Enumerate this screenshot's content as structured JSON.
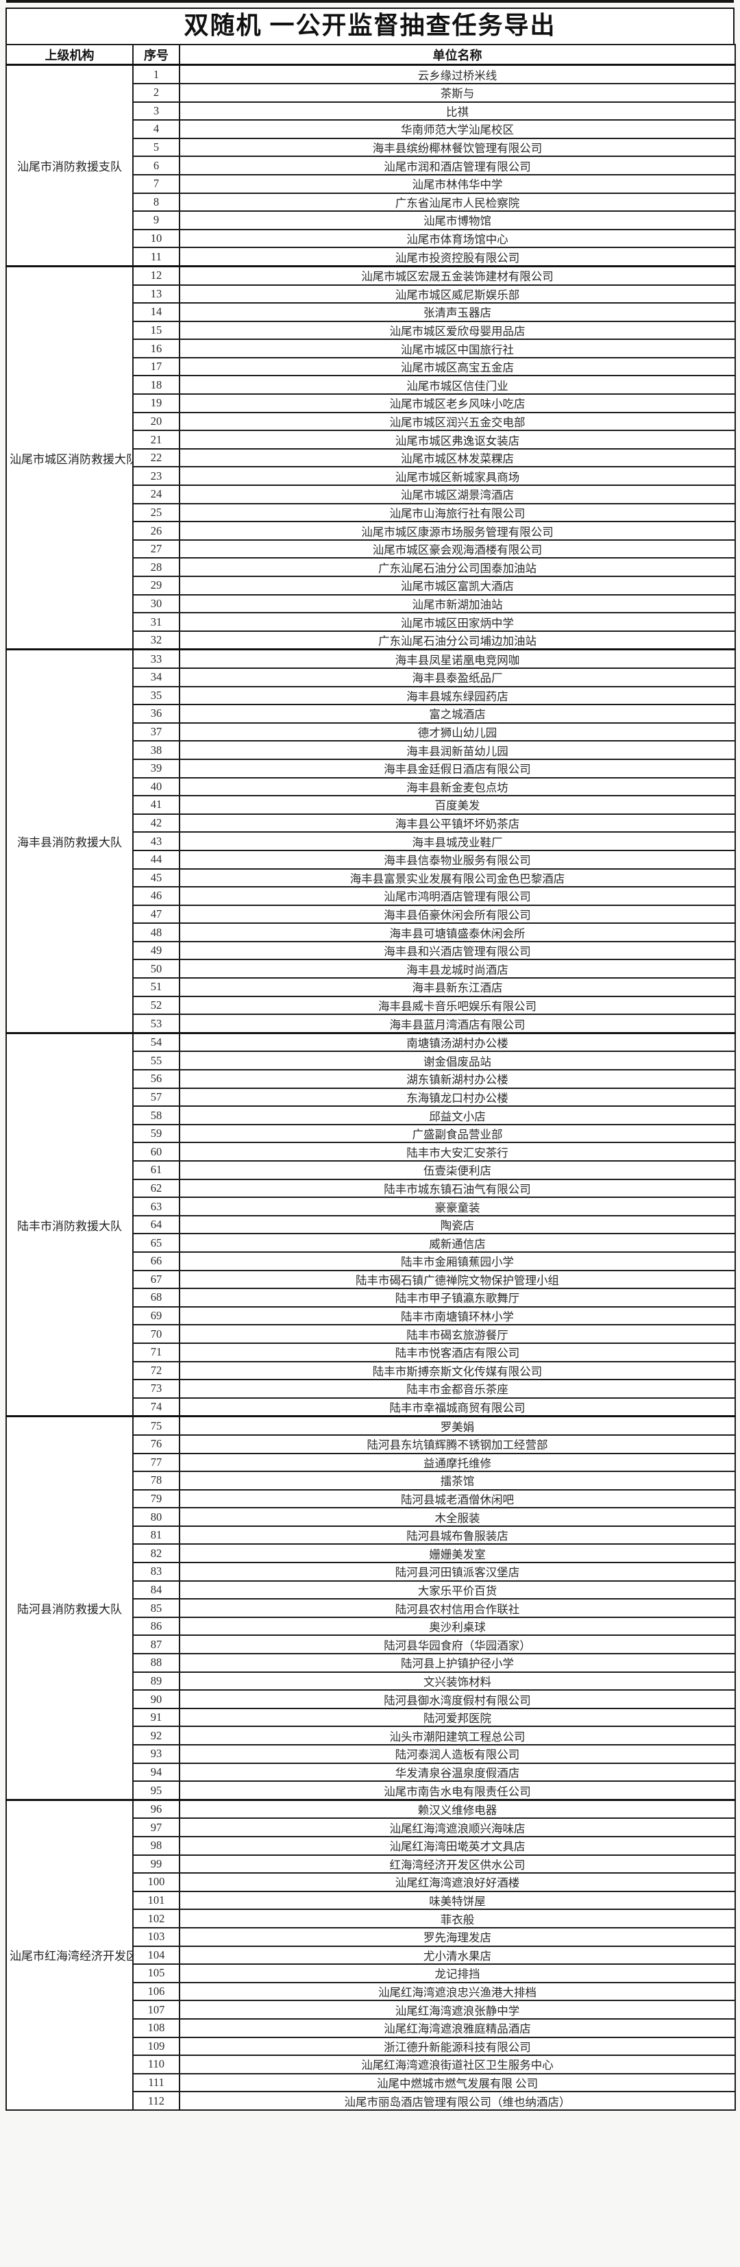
{
  "title": "双随机 一公开监督抽查任务导出",
  "table": {
    "headers": [
      "上级机构",
      "序号",
      "单位名称"
    ],
    "groups": [
      {
        "org": "汕尾市消防救援支队",
        "rows": [
          {
            "no": "1",
            "name": "云乡缘过桥米线"
          },
          {
            "no": "2",
            "name": "茶斯与"
          },
          {
            "no": "3",
            "name": "比祺"
          },
          {
            "no": "4",
            "name": "华南师范大学汕尾校区"
          },
          {
            "no": "5",
            "name": "海丰县缤纷椰林餐饮管理有限公司"
          },
          {
            "no": "6",
            "name": "汕尾市润和酒店管理有限公司"
          },
          {
            "no": "7",
            "name": "汕尾市林伟华中学"
          },
          {
            "no": "8",
            "name": "广东省汕尾市人民检察院"
          },
          {
            "no": "9",
            "name": "汕尾市博物馆"
          },
          {
            "no": "10",
            "name": "汕尾市体育场馆中心"
          },
          {
            "no": "11",
            "name": "汕尾市投资控股有限公司"
          }
        ]
      },
      {
        "org": "汕尾市城区消防救援大队",
        "rows": [
          {
            "no": "12",
            "name": "汕尾市城区宏晟五金装饰建材有限公司"
          },
          {
            "no": "13",
            "name": "汕尾市城区威尼斯娱乐部"
          },
          {
            "no": "14",
            "name": "张清声玉器店"
          },
          {
            "no": "15",
            "name": "汕尾市城区爱欣母婴用品店"
          },
          {
            "no": "16",
            "name": "汕尾市城区中国旅行社"
          },
          {
            "no": "17",
            "name": "汕尾市城区高宝五金店"
          },
          {
            "no": "18",
            "name": "汕尾市城区信佳门业"
          },
          {
            "no": "19",
            "name": "汕尾市城区老乡风味小吃店"
          },
          {
            "no": "20",
            "name": "汕尾市城区润兴五金交电部"
          },
          {
            "no": "21",
            "name": "汕尾市城区弗逸讴女装店"
          },
          {
            "no": "22",
            "name": "汕尾市城区林发菜粿店"
          },
          {
            "no": "23",
            "name": "汕尾市城区新城家具商场"
          },
          {
            "no": "24",
            "name": "汕尾市城区湖景湾酒店"
          },
          {
            "no": "25",
            "name": "汕尾市山海旅行社有限公司"
          },
          {
            "no": "26",
            "name": "汕尾市城区康源市场服务管理有限公司"
          },
          {
            "no": "27",
            "name": "汕尾市城区豪会观海酒楼有限公司"
          },
          {
            "no": "28",
            "name": "广东汕尾石油分公司国泰加油站"
          },
          {
            "no": "29",
            "name": "汕尾市城区富凯大酒店"
          },
          {
            "no": "30",
            "name": "汕尾市新湖加油站"
          },
          {
            "no": "31",
            "name": "汕尾市城区田家炳中学"
          },
          {
            "no": "32",
            "name": "广东汕尾石油分公司埔边加油站"
          }
        ]
      },
      {
        "org": "海丰县消防救援大队",
        "rows": [
          {
            "no": "33",
            "name": "海丰县凤星诺凰电竞网咖"
          },
          {
            "no": "34",
            "name": "海丰县泰盈纸品厂"
          },
          {
            "no": "35",
            "name": "海丰县城东绿园药店"
          },
          {
            "no": "36",
            "name": "富之城酒店"
          },
          {
            "no": "37",
            "name": "德才狮山幼儿园"
          },
          {
            "no": "38",
            "name": "海丰县润新苗幼儿园"
          },
          {
            "no": "39",
            "name": "海丰县金廷假日酒店有限公司"
          },
          {
            "no": "40",
            "name": "海丰县新金麦包点坊"
          },
          {
            "no": "41",
            "name": "百度美发"
          },
          {
            "no": "42",
            "name": "海丰县公平镇坏坏奶茶店"
          },
          {
            "no": "43",
            "name": "海丰县城茂业鞋厂"
          },
          {
            "no": "44",
            "name": "海丰县信泰物业服务有限公司"
          },
          {
            "no": "45",
            "name": "海丰县富景实业发展有限公司金色巴黎酒店"
          },
          {
            "no": "46",
            "name": "汕尾市鸿明酒店管理有限公司"
          },
          {
            "no": "47",
            "name": "海丰县佰豪休闲会所有限公司"
          },
          {
            "no": "48",
            "name": "海丰县可塘镇盛泰休闲会所"
          },
          {
            "no": "49",
            "name": "海丰县和兴酒店管理有限公司"
          },
          {
            "no": "50",
            "name": "海丰县龙城时尚酒店"
          },
          {
            "no": "51",
            "name": "海丰县新东江酒店"
          },
          {
            "no": "52",
            "name": "海丰县威卡音乐吧娱乐有限公司"
          },
          {
            "no": "53",
            "name": "海丰县蓝月湾酒店有限公司"
          }
        ]
      },
      {
        "org": "陆丰市消防救援大队",
        "rows": [
          {
            "no": "54",
            "name": "南塘镇汤湖村办公楼"
          },
          {
            "no": "55",
            "name": "谢金倡废品站"
          },
          {
            "no": "56",
            "name": "湖东镇新湖村办公楼"
          },
          {
            "no": "57",
            "name": "东海镇龙口村办公楼"
          },
          {
            "no": "58",
            "name": "邱益文小店"
          },
          {
            "no": "59",
            "name": "广盛副食品营业部"
          },
          {
            "no": "60",
            "name": "陆丰市大安汇安茶行"
          },
          {
            "no": "61",
            "name": "伍壹柒便利店"
          },
          {
            "no": "62",
            "name": "陆丰市城东镇石油气有限公司"
          },
          {
            "no": "63",
            "name": "豪豪童装"
          },
          {
            "no": "64",
            "name": "陶瓷店"
          },
          {
            "no": "65",
            "name": "威新通信店"
          },
          {
            "no": "66",
            "name": "陆丰市金厢镇蕉园小学"
          },
          {
            "no": "67",
            "name": "陆丰市碣石镇广德禅院文物保护管理小组"
          },
          {
            "no": "68",
            "name": "陆丰市甲子镇瀛东歌舞厅"
          },
          {
            "no": "69",
            "name": "陆丰市南塘镇环林小学"
          },
          {
            "no": "70",
            "name": "陆丰市碣玄旅游餐厅"
          },
          {
            "no": "71",
            "name": "陆丰市悦客酒店有限公司"
          },
          {
            "no": "72",
            "name": "陆丰市斯搏奈斯文化传媒有限公司"
          },
          {
            "no": "73",
            "name": "陆丰市金都音乐茶座"
          },
          {
            "no": "74",
            "name": "陆丰市幸福城商贸有限公司"
          }
        ]
      },
      {
        "org": "陆河县消防救援大队",
        "rows": [
          {
            "no": "75",
            "name": "罗美娟"
          },
          {
            "no": "76",
            "name": "陆河县东坑镇辉腾不锈钢加工经营部"
          },
          {
            "no": "77",
            "name": "益通摩托维修"
          },
          {
            "no": "78",
            "name": "擂茶馆"
          },
          {
            "no": "79",
            "name": "陆河县城老酒僧休闲吧"
          },
          {
            "no": "80",
            "name": "木全服装"
          },
          {
            "no": "81",
            "name": "陆河县城布鲁服装店"
          },
          {
            "no": "82",
            "name": "姗姗美发室"
          },
          {
            "no": "83",
            "name": "陆河县河田镇派客汉堡店"
          },
          {
            "no": "84",
            "name": "大家乐平价百货"
          },
          {
            "no": "85",
            "name": "陆河县农村信用合作联社"
          },
          {
            "no": "86",
            "name": "奥沙利桌球"
          },
          {
            "no": "87",
            "name": "陆河县华园食府（华园酒家）"
          },
          {
            "no": "88",
            "name": "陆河县上护镇护径小学"
          },
          {
            "no": "89",
            "name": "文兴装饰材料"
          },
          {
            "no": "90",
            "name": "陆河县御水湾度假村有限公司"
          },
          {
            "no": "91",
            "name": "陆河爱邦医院"
          },
          {
            "no": "92",
            "name": "汕头市潮阳建筑工程总公司"
          },
          {
            "no": "93",
            "name": "陆河泰润人造板有限公司"
          },
          {
            "no": "94",
            "name": "华发清泉谷温泉度假酒店"
          },
          {
            "no": "95",
            "name": "汕尾市南告水电有限责任公司"
          }
        ]
      },
      {
        "org": "汕尾市红海湾经济开发区消防救援大队",
        "rows": [
          {
            "no": "96",
            "name": "赖汉义维修电器"
          },
          {
            "no": "97",
            "name": "汕尾红海湾遮浪顺兴海味店"
          },
          {
            "no": "98",
            "name": "汕尾红海湾田墘英才文具店"
          },
          {
            "no": "99",
            "name": "红海湾经济开发区供水公司"
          },
          {
            "no": "100",
            "name": "汕尾红海湾遮浪好好酒楼"
          },
          {
            "no": "101",
            "name": "味美特饼屋"
          },
          {
            "no": "102",
            "name": "菲衣般"
          },
          {
            "no": "103",
            "name": "罗先海理发店"
          },
          {
            "no": "104",
            "name": "尤小清水果店"
          },
          {
            "no": "105",
            "name": "龙记排挡"
          },
          {
            "no": "106",
            "name": "汕尾红海湾遮浪忠兴渔港大排档"
          },
          {
            "no": "107",
            "name": "汕尾红海湾遮浪张静中学"
          },
          {
            "no": "108",
            "name": "汕尾红海湾遮浪雅庭精品酒店"
          },
          {
            "no": "109",
            "name": "浙江德升新能源科技有限公司"
          },
          {
            "no": "110",
            "name": "汕尾红海湾遮浪街道社区卫生服务中心"
          },
          {
            "no": "111",
            "name": "汕尾中燃城市燃气发展有限 公司"
          },
          {
            "no": "112",
            "name": "汕尾市丽岛酒店管理有限公司（维也纳酒店）"
          }
        ]
      }
    ]
  }
}
